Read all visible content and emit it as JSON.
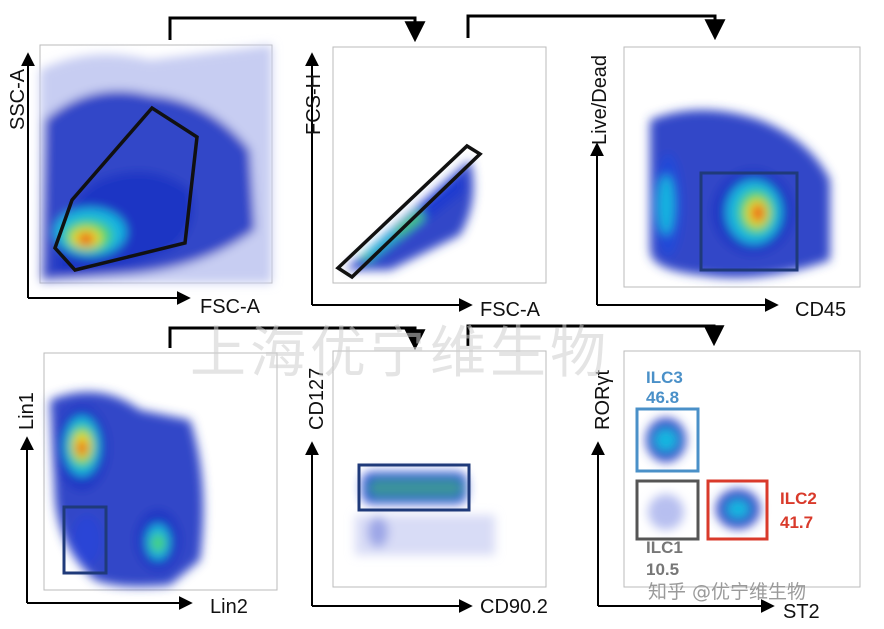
{
  "chart_data": [
    {
      "type": "scatter",
      "title": "",
      "xlabel": "FSC-A",
      "ylabel": "SSC-A",
      "gate": {
        "shape": "polygon",
        "color": "#111111"
      }
    },
    {
      "type": "scatter",
      "title": "",
      "xlabel": "FSC-A",
      "ylabel": "FCS-H",
      "gate": {
        "shape": "rotated-rectangle",
        "color": "#111111"
      }
    },
    {
      "type": "scatter",
      "title": "",
      "xlabel": "CD45",
      "ylabel": "Live/Dead",
      "gate": {
        "shape": "rectangle",
        "color": "#1f3a7a"
      }
    },
    {
      "type": "scatter",
      "title": "",
      "xlabel": "Lin2",
      "ylabel": "Lin1",
      "gate": {
        "shape": "rectangle",
        "color": "#1f3a7a"
      }
    },
    {
      "type": "scatter",
      "title": "",
      "xlabel": "CD90.2",
      "ylabel": "CD127",
      "gate": {
        "shape": "rectangle",
        "color": "#1f3a7a"
      }
    },
    {
      "type": "scatter",
      "title": "",
      "xlabel": "ST2",
      "ylabel": "RORγt",
      "gates": [
        {
          "name": "ILC3",
          "percent": "46.8",
          "color": "#4a90c8"
        },
        {
          "name": "ILC1",
          "percent": "10.5",
          "color": "#555555"
        },
        {
          "name": "ILC2",
          "percent": "41.7",
          "color": "#d93a2b"
        }
      ]
    }
  ],
  "watermark": {
    "main": "上海优宁维生物",
    "corner": "知乎 @优宁维生物"
  }
}
